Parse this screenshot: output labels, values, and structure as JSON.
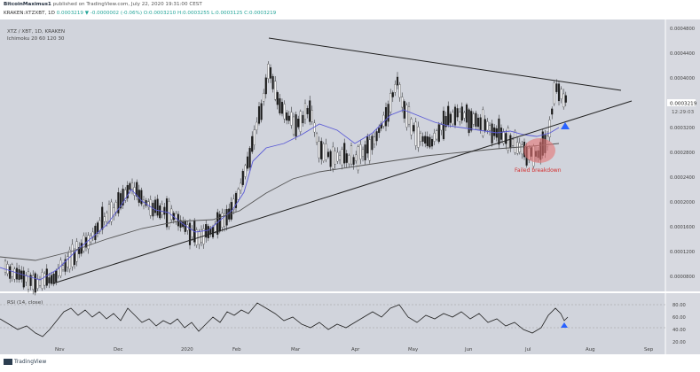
{
  "header": {
    "author": "BitcoinMaximus1",
    "published": "published on TradingView.com, July 22, 2020 19:31:00 CEST",
    "symbol_line": "KRAKEN:XTZXBT, 1D",
    "ohlc": "0.0003219 ▼ -0.0000002 (-0.06%) O:0.0003210 H:0.0003255 L:0.0003125 C:0.0003219"
  },
  "chart": {
    "legend_symbol": "XTZ / XBT, 1D, KRAKEN",
    "legend_study": "Ichimoku 20 60 120 30",
    "current_price": "0.0003219",
    "countdown": "12:29:03",
    "annotation": "Failed breakdown",
    "price_ticks": [
      "0.0004800",
      "0.0004400",
      "0.0004000",
      "0.0003600",
      "0.0003200",
      "0.0002800",
      "0.0002400",
      "0.0002000",
      "0.0001600",
      "0.0001200",
      "0.0000800"
    ],
    "rsi_label": "RSI (14, close)",
    "rsi_ticks": [
      "80.00",
      "60.00",
      "40.00",
      "20.00"
    ],
    "time_ticks": [
      "Nov",
      "Dec",
      "2020",
      "Feb",
      "Mar",
      "Apr",
      "May",
      "Jun",
      "Jul",
      "Aug",
      "Sep"
    ]
  },
  "footer": {
    "logo": "TradingView"
  },
  "colors": {
    "background": "#d1d4dc",
    "candle": "#1a1a1a",
    "ma": "#5b5bd6",
    "annotation": "#e57373",
    "signal": "#2962ff"
  }
}
